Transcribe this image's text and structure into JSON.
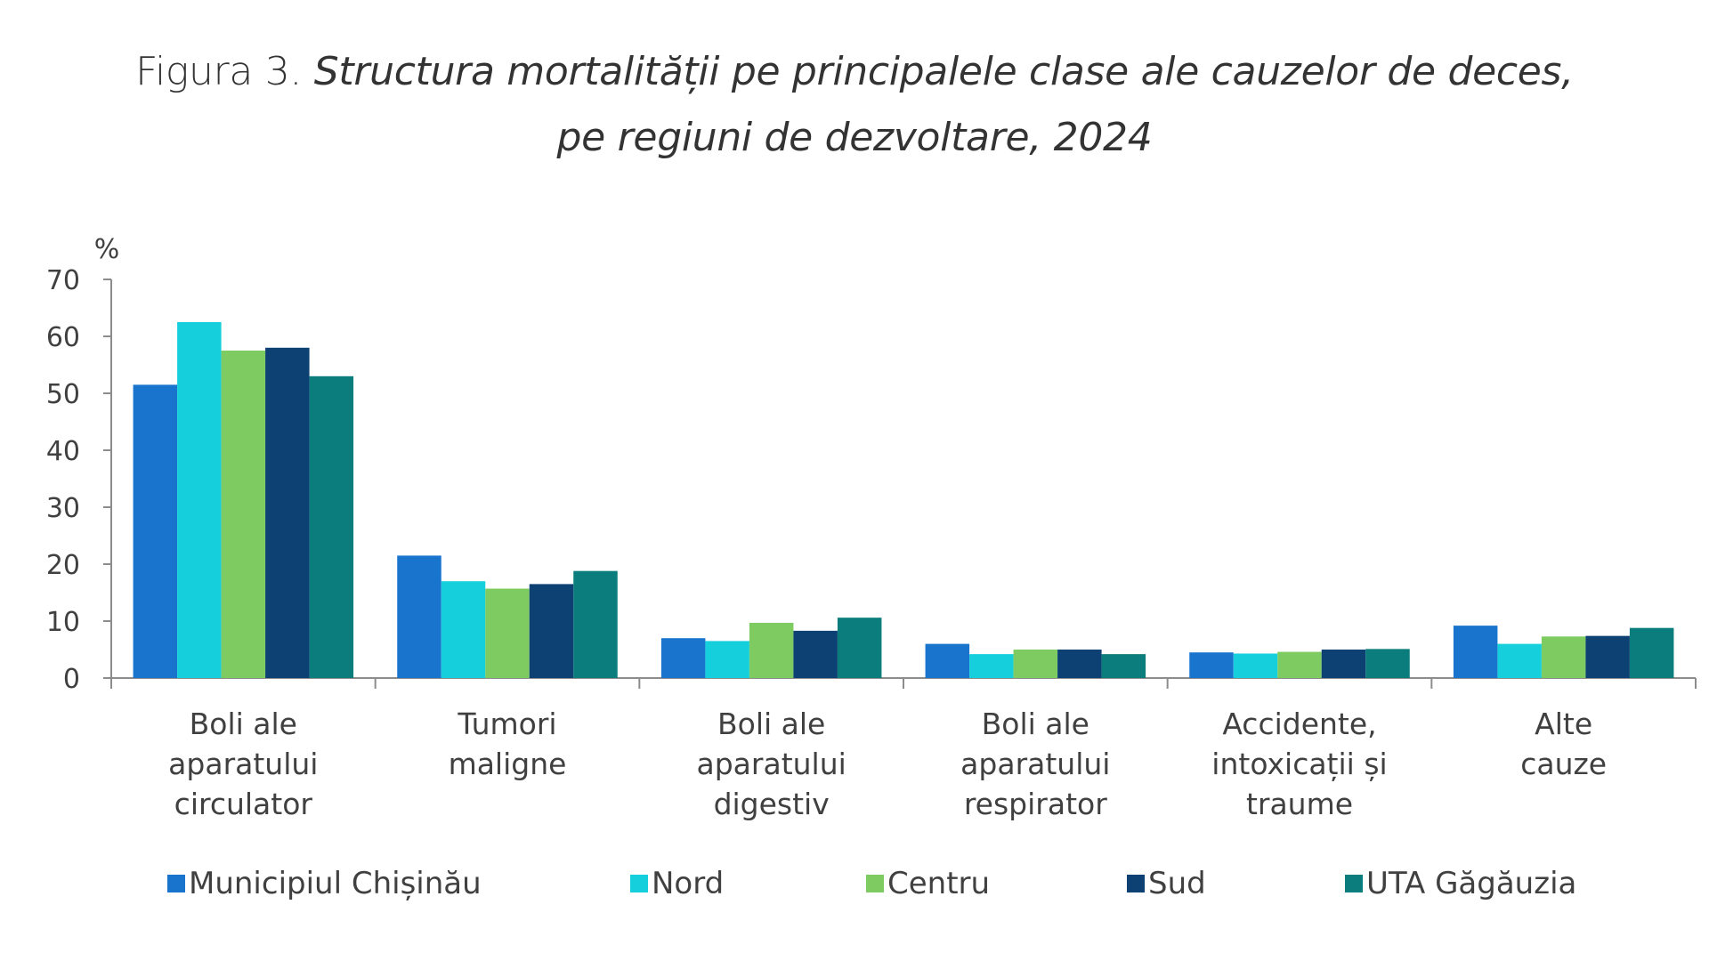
{
  "title": {
    "prefix": "Figura 3. ",
    "line1_italic": "Structura mortalității pe principalele clase ale cauzelor de deces,",
    "line2_italic": "pe regiuni de dezvoltare, 2024"
  },
  "chart_data": {
    "type": "bar",
    "ylabel": "%",
    "ylim": [
      0,
      70
    ],
    "yticks": [
      0,
      10,
      20,
      30,
      40,
      50,
      60,
      70
    ],
    "grid": false,
    "legend_position": "bottom",
    "categories": [
      [
        "Boli ale",
        "aparatului",
        "circulator"
      ],
      [
        "Tumori",
        "maligne"
      ],
      [
        "Boli ale",
        "aparatului",
        "digestiv"
      ],
      [
        "Boli ale",
        "aparatului",
        "respirator"
      ],
      [
        "Accidente,",
        "intoxicații și",
        "traume"
      ],
      [
        "Alte",
        "cauze"
      ]
    ],
    "series": [
      {
        "name": "Municipiul Chișinău",
        "color": "#1874CD",
        "values": [
          51.5,
          21.5,
          7.0,
          6.0,
          4.5,
          9.2
        ]
      },
      {
        "name": "Nord",
        "color": "#16CFDD",
        "values": [
          62.5,
          17.0,
          6.5,
          4.2,
          4.3,
          6.0
        ]
      },
      {
        "name": "Centru",
        "color": "#7ECB62",
        "values": [
          57.5,
          15.7,
          9.7,
          5.0,
          4.6,
          7.3
        ]
      },
      {
        "name": "Sud",
        "color": "#0D4174",
        "values": [
          58.0,
          16.5,
          8.3,
          5.0,
          5.0,
          7.4
        ]
      },
      {
        "name": "UTA Găgăuzia",
        "color": "#0B7D7C",
        "values": [
          53.0,
          18.8,
          10.6,
          4.2,
          5.1,
          8.8
        ]
      }
    ]
  }
}
